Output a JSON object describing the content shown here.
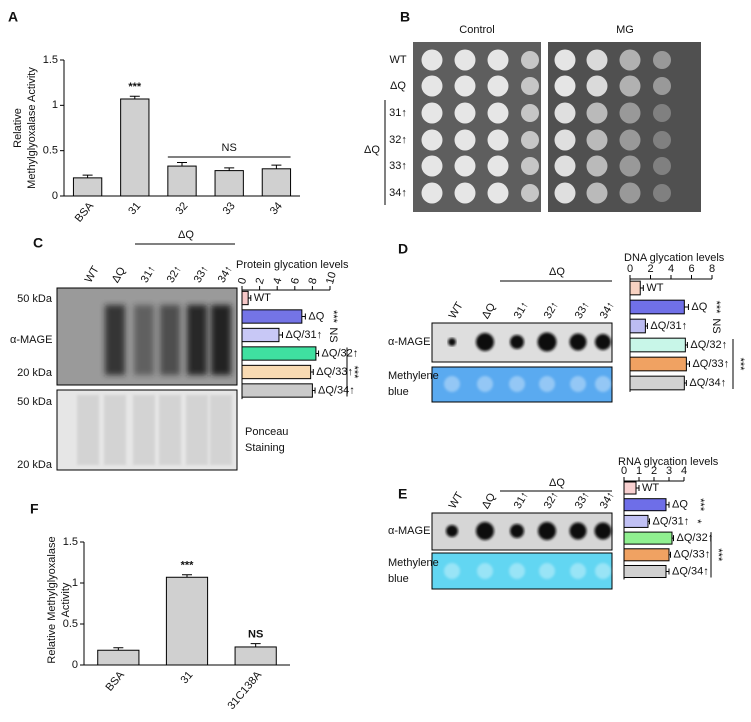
{
  "panel_labels": [
    "A",
    "B",
    "C",
    "D",
    "E",
    "F"
  ],
  "chart_data": [
    {
      "type": "bar",
      "orientation": "vertical",
      "y_label": [
        "Relative",
        "Methylglyoxalase Activity"
      ],
      "categories": [
        "BSA",
        "31",
        "32",
        "33",
        "34"
      ],
      "values": [
        0.2,
        1.07,
        0.33,
        0.28,
        0.3
      ],
      "errors": [
        0.03,
        0.03,
        0.04,
        0.03,
        0.04
      ],
      "color": "#d0d0d0",
      "ylim": [
        0,
        1.5
      ],
      "yticks": [
        0,
        0.5,
        1,
        1.5
      ],
      "annotations": [
        "***",
        "NS"
      ]
    },
    {
      "type": "bar",
      "orientation": "horizontal",
      "title": "Protein glycation levels",
      "categories": [
        "WT",
        "ΔQ",
        "ΔQ/31↑",
        "ΔQ/32↑",
        "ΔQ/33↑",
        "ΔQ/34↑"
      ],
      "values": [
        0.7,
        6.8,
        4.2,
        8.4,
        7.8,
        8.0
      ],
      "errors": [
        0.3,
        0.4,
        0.4,
        0.3,
        0.3,
        0.3
      ],
      "colors": [
        "#f6c8c8",
        "#7474e6",
        "#c8c8f6",
        "#3fe0a0",
        "#f8dab2",
        "#cacaca"
      ],
      "xlim": [
        0,
        10
      ],
      "xticks": [
        0,
        2,
        4,
        6,
        8,
        10
      ],
      "annotations": [
        "***",
        "NS",
        "***"
      ]
    },
    {
      "type": "bar",
      "orientation": "horizontal",
      "title": "DNA glycation levels",
      "categories": [
        "WT",
        "ΔQ",
        "ΔQ/31↑",
        "ΔQ/32↑",
        "ΔQ/33↑",
        "ΔQ/34↑"
      ],
      "values": [
        1,
        5.3,
        1.5,
        5.4,
        5.5,
        5.3
      ],
      "errors": [
        0.3,
        0.4,
        0.2,
        0.2,
        0.3,
        0.2
      ],
      "colors": [
        "#f8d2c2",
        "#7070e8",
        "#bcbcf2",
        "#c8f6e8",
        "#f0a262",
        "#d2d2d2"
      ],
      "xlim": [
        0,
        8
      ],
      "xticks": [
        0,
        2,
        4,
        6,
        8
      ],
      "annotations": [
        "***",
        "NS",
        "***"
      ]
    },
    {
      "type": "bar",
      "orientation": "horizontal",
      "title": "RNA glycation levels",
      "categories": [
        "WT",
        "ΔQ",
        "ΔQ/31↑",
        "ΔQ/32↑",
        "ΔQ/33↑",
        "ΔQ/34↑"
      ],
      "values": [
        0.8,
        2.8,
        1.6,
        3.2,
        3.0,
        2.8
      ],
      "errors": [
        0.2,
        0.2,
        0.1,
        0.1,
        0.1,
        0.2
      ],
      "colors": [
        "#f8d0d0",
        "#6e6ee8",
        "#c0c0f4",
        "#90f090",
        "#f0a262",
        "#d0d0d0"
      ],
      "xlim": [
        0,
        4
      ],
      "xticks": [
        0,
        1,
        2,
        3,
        4
      ],
      "annotations": [
        "***",
        "*",
        "***"
      ]
    },
    {
      "type": "bar",
      "orientation": "vertical",
      "y_label": [
        "Relative Methylglyoxalase",
        "Activity"
      ],
      "categories": [
        "BSA",
        "31",
        "31C138A"
      ],
      "values": [
        0.18,
        1.07,
        0.22
      ],
      "errors": [
        0.03,
        0.03,
        0.04
      ],
      "color": "#d0d0d0",
      "ylim": [
        0,
        1.5
      ],
      "yticks": [
        0,
        0.5,
        1,
        1.5
      ],
      "annotations": [
        "***",
        "NS"
      ]
    }
  ],
  "blots": {
    "B": {
      "columns": [
        "Control",
        "MG"
      ],
      "rows": [
        "WT",
        "ΔQ",
        "31↑",
        "32↑",
        "33↑",
        "34↑"
      ],
      "group": "ΔQ"
    },
    "C": {
      "lanes": [
        "WT",
        "ΔQ",
        "31↑",
        "32↑",
        "33↑",
        "34↑"
      ],
      "group": "ΔQ",
      "markers": [
        "50 kDa",
        "20 kDa",
        "50 kDa",
        "20 kDa"
      ],
      "probe": "α-MAGE",
      "stain": [
        "Ponceau",
        "Staining"
      ]
    },
    "D": {
      "lanes": [
        "WT",
        "ΔQ",
        "31↑",
        "32↑",
        "33↑",
        "34↑"
      ],
      "group": "ΔQ",
      "probe": "α-MAGE",
      "stain": [
        "Methylene",
        "blue"
      ]
    },
    "E": {
      "lanes": [
        "WT",
        "ΔQ",
        "31↑",
        "32↑",
        "33↑",
        "34↑"
      ],
      "group": "ΔQ",
      "probe": "α-MAGE",
      "stain": [
        "Methylene",
        "blue"
      ]
    }
  }
}
